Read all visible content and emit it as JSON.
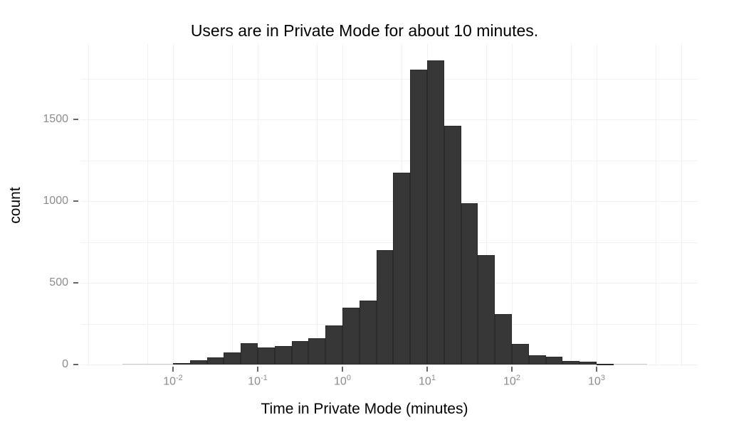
{
  "page": {
    "background": "#ffffff"
  },
  "chart_data": {
    "type": "histogram",
    "title": "Users are in Private Mode for about 10 minutes.",
    "xlabel": "Time in Private Mode (minutes)",
    "ylabel": "count",
    "x_scale": "log10",
    "legend": "none",
    "grid": "on",
    "x_tick_exponents": [
      -2,
      -1,
      0,
      1,
      2,
      3
    ],
    "y_ticks": [
      0,
      500,
      1000,
      1500
    ],
    "ylim": [
      0,
      1900
    ],
    "xlim_log10": [
      -3.05,
      4.2
    ],
    "bin_width_log10": 0.2,
    "grid_vertical_log10": [
      -3,
      -2.301,
      -2,
      -1.301,
      -1,
      -0.301,
      0,
      0.699,
      1,
      1.699,
      2,
      2.699,
      3,
      3.699,
      4
    ],
    "grid_horizontal_counts": [
      0,
      250,
      500,
      750,
      1000,
      1250,
      1500,
      1750
    ],
    "bins": [
      {
        "log_left": -2.6,
        "count": 2
      },
      {
        "log_left": -2.4,
        "count": 2
      },
      {
        "log_left": -2.2,
        "count": 3
      },
      {
        "log_left": -2.0,
        "count": 9
      },
      {
        "log_left": -1.8,
        "count": 25
      },
      {
        "log_left": -1.6,
        "count": 45
      },
      {
        "log_left": -1.4,
        "count": 75
      },
      {
        "log_left": -1.2,
        "count": 132
      },
      {
        "log_left": -1.0,
        "count": 103
      },
      {
        "log_left": -0.8,
        "count": 113
      },
      {
        "log_left": -0.6,
        "count": 143
      },
      {
        "log_left": -0.4,
        "count": 161
      },
      {
        "log_left": -0.2,
        "count": 238
      },
      {
        "log_left": 0.0,
        "count": 347
      },
      {
        "log_left": 0.2,
        "count": 393
      },
      {
        "log_left": 0.4,
        "count": 700
      },
      {
        "log_left": 0.6,
        "count": 1175
      },
      {
        "log_left": 0.8,
        "count": 1805
      },
      {
        "log_left": 1.0,
        "count": 1860
      },
      {
        "log_left": 1.2,
        "count": 1459
      },
      {
        "log_left": 1.4,
        "count": 985
      },
      {
        "log_left": 1.6,
        "count": 668
      },
      {
        "log_left": 1.8,
        "count": 309
      },
      {
        "log_left": 2.0,
        "count": 125
      },
      {
        "log_left": 2.2,
        "count": 57
      },
      {
        "log_left": 2.4,
        "count": 46
      },
      {
        "log_left": 2.6,
        "count": 22
      },
      {
        "log_left": 2.8,
        "count": 16
      },
      {
        "log_left": 3.0,
        "count": 4
      },
      {
        "log_left": 3.2,
        "count": 2
      },
      {
        "log_left": 3.4,
        "count": 1
      }
    ],
    "colors": {
      "bar_fill": "#373737",
      "bar_border": "#2b2b2b",
      "faint_bar": "#c9c9c9",
      "grid": "#f1f1f1",
      "tick": "#666666",
      "tick_label": "#8c8c8c",
      "title": "#000000",
      "axis_title": "#000000"
    }
  }
}
